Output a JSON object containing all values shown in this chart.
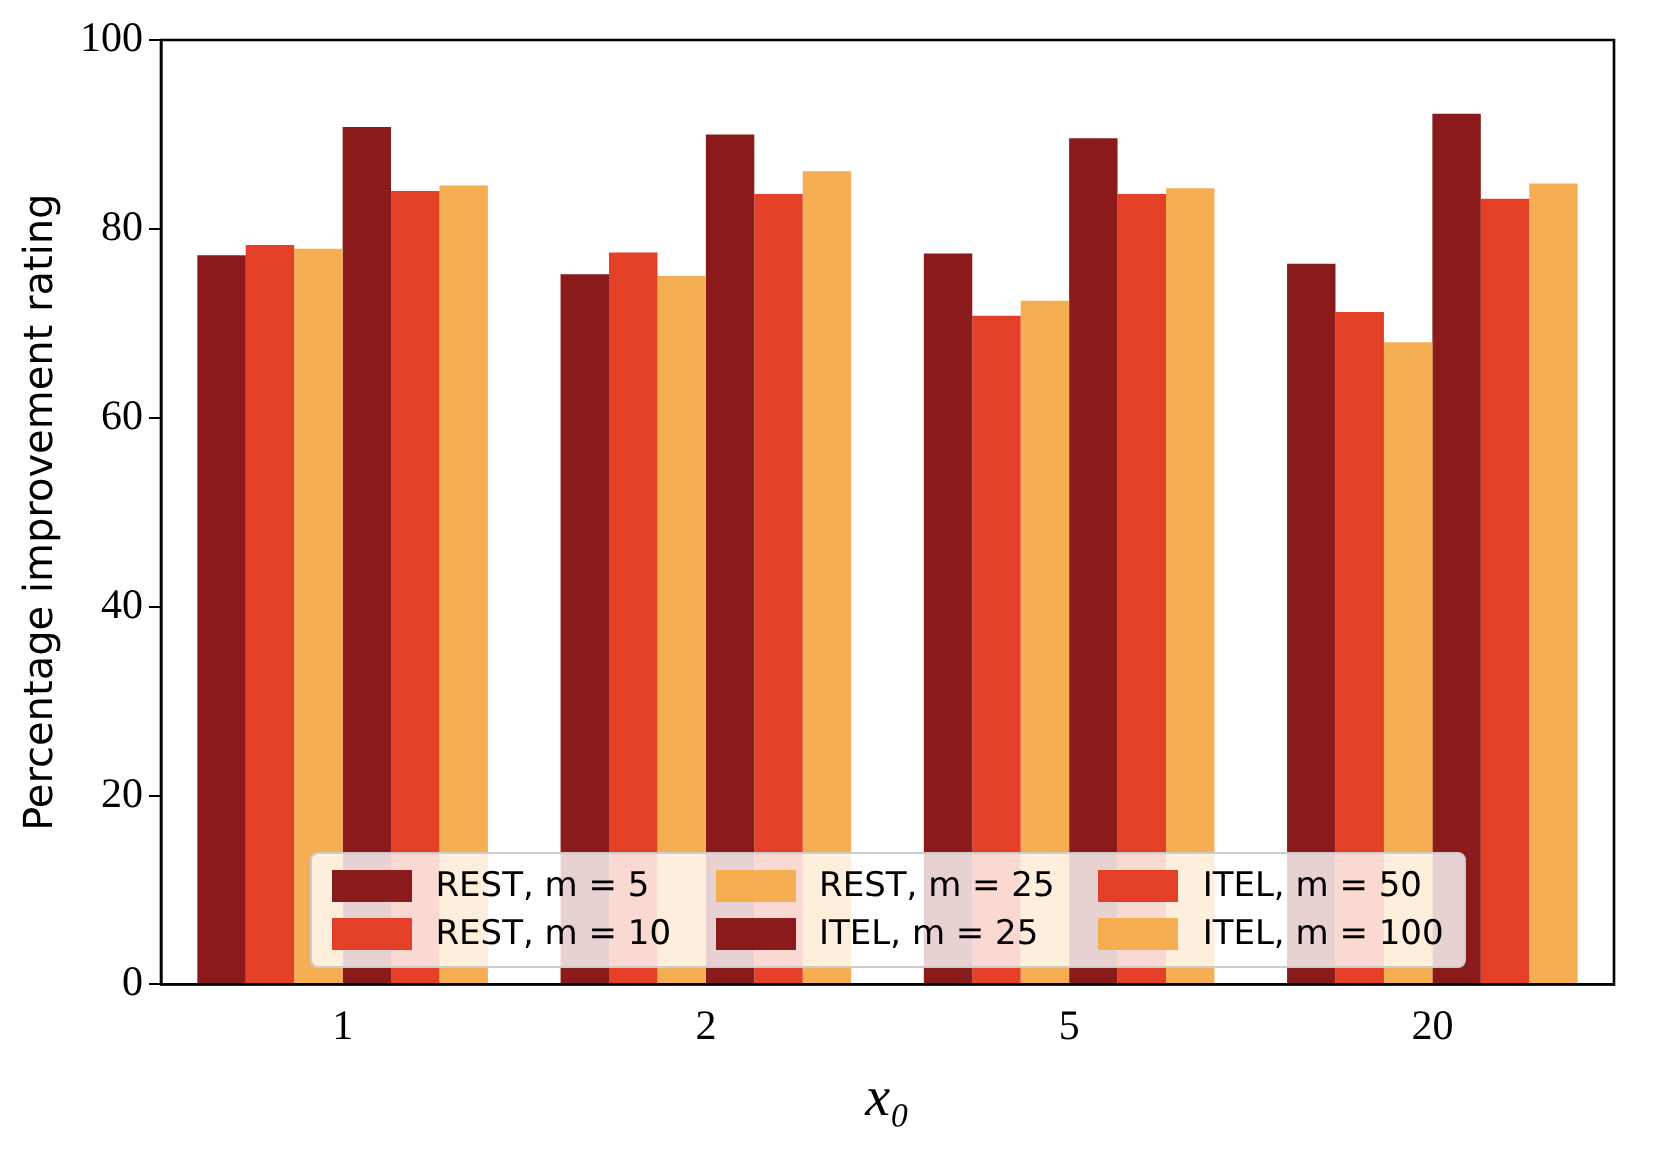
{
  "chart_data": {
    "type": "bar",
    "xlabel": "x₀",
    "ylabel": "Percentage improvement rating",
    "categories": [
      "1",
      "2",
      "5",
      "20"
    ],
    "series": [
      {
        "name": "REST, m = 5",
        "color": "#8b1a1a",
        "values": [
          77.2,
          75.2,
          77.4,
          76.3
        ]
      },
      {
        "name": "REST, m = 10",
        "color": "#e34027",
        "values": [
          78.3,
          77.5,
          70.8,
          71.2
        ]
      },
      {
        "name": "REST, m = 25",
        "color": "#f5ae52",
        "values": [
          77.9,
          75.0,
          72.4,
          68.0
        ]
      },
      {
        "name": "ITEL, m = 25",
        "color": "#8b1a1a",
        "values": [
          90.8,
          90.0,
          89.6,
          92.2
        ]
      },
      {
        "name": "ITEL, m = 50",
        "color": "#e34027",
        "values": [
          84.0,
          83.7,
          83.7,
          83.2
        ]
      },
      {
        "name": "ITEL, m = 100",
        "color": "#f5ae52",
        "values": [
          84.6,
          86.1,
          84.3,
          84.8
        ]
      }
    ],
    "ylim": [
      0,
      100
    ],
    "yticks": [
      0,
      20,
      40,
      60,
      80,
      100
    ],
    "grid": false,
    "legend": "bottom"
  }
}
